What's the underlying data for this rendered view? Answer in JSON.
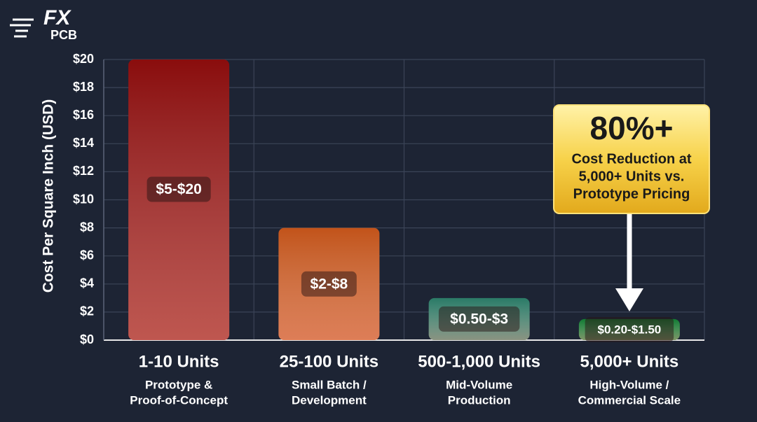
{
  "logo": {
    "top": "FX",
    "bottom": "PCB"
  },
  "chart_data": {
    "type": "bar",
    "y_label": "Cost Per Square Inch (USD)",
    "categories": [
      "1-10 Units",
      "25-100 Units",
      "500-1,000 Units",
      "5,000+ Units"
    ],
    "subcategories": [
      [
        "Prototype &",
        "Proof-of-Concept"
      ],
      [
        "Small Batch /",
        "Development"
      ],
      [
        "Mid-Volume",
        "Production"
      ],
      [
        "High-Volume /",
        "Commercial Scale"
      ]
    ],
    "values": [
      20,
      8,
      3,
      1.5
    ],
    "value_labels": [
      "$5-$20",
      "$2-$8",
      "$0.50-$3",
      "$0.20-$1.50"
    ],
    "colors": [
      "#8a0d0d",
      "#c2531a",
      "#2b7a66",
      "#137a32"
    ],
    "ylim": [
      0,
      20
    ],
    "yticks": [
      {
        "value": 0,
        "label": "$0"
      },
      {
        "value": 2,
        "label": "$2"
      },
      {
        "value": 4,
        "label": "$4"
      },
      {
        "value": 6,
        "label": "$6"
      },
      {
        "value": 8,
        "label": "$8"
      },
      {
        "value": 10,
        "label": "$10"
      },
      {
        "value": 12,
        "label": "$12"
      },
      {
        "value": 14,
        "label": "$14"
      },
      {
        "value": 16,
        "label": "$16"
      },
      {
        "value": 18,
        "label": "$18"
      },
      {
        "value": 20,
        "label": "$20"
      }
    ],
    "grid": true,
    "annotation": {
      "headline": "80%+",
      "lines": [
        "Cost Reduction at",
        "5,000+ Units vs.",
        "Prototype Pricing"
      ]
    }
  }
}
